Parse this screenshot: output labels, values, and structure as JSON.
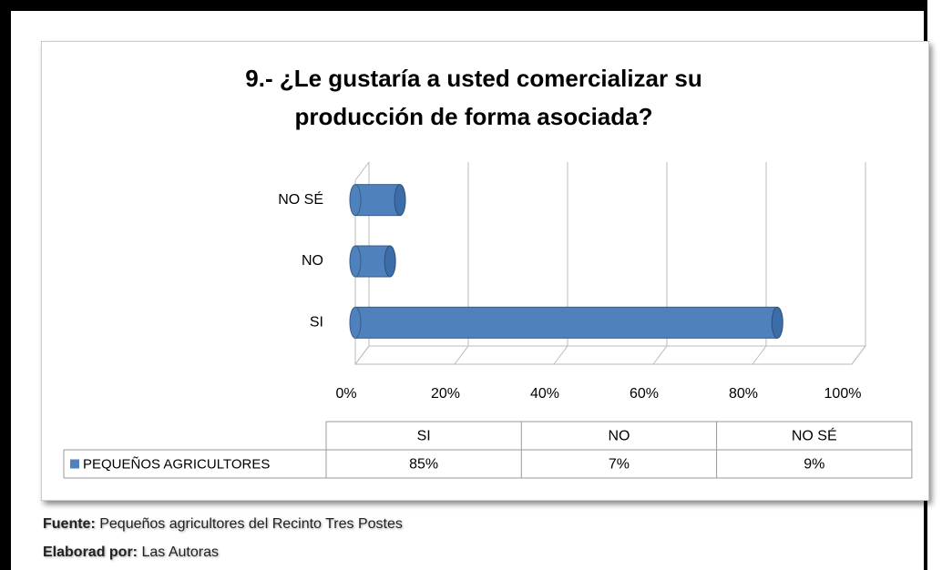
{
  "chart_data": {
    "type": "bar",
    "orientation": "horizontal",
    "title": "9.- ¿Le gustaría a usted comercializar su producción de forma asociada?",
    "categories": [
      "SI",
      "NO",
      "NO SÉ"
    ],
    "series": [
      {
        "name": "PEQUEÑOS AGRICULTORES",
        "color": "#4f81bd",
        "values": [
          85,
          7,
          9
        ],
        "value_labels": [
          "85%",
          "7%",
          "9%"
        ]
      }
    ],
    "xlim": [
      0,
      100
    ],
    "xticks": [
      {
        "value": 0,
        "label": "0%"
      },
      {
        "value": 20,
        "label": "20%"
      },
      {
        "value": 40,
        "label": "40%"
      },
      {
        "value": 60,
        "label": "60%"
      },
      {
        "value": 80,
        "label": "80%"
      },
      {
        "value": 100,
        "label": "100%"
      }
    ],
    "grid": true,
    "data_table": true
  },
  "footer": {
    "source_label": "Fuente:",
    "source_text": "Pequeños agricultores del Recinto Tres Postes",
    "author_label": "Elaborad por:",
    "author_text": "Las Autoras"
  }
}
